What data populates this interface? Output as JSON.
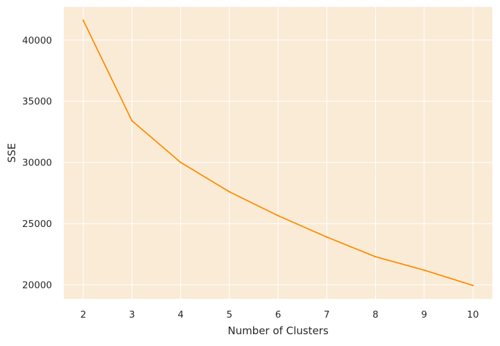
{
  "chart_data": {
    "type": "line",
    "title": "",
    "xlabel": "Number of Clusters",
    "ylabel": "SSE",
    "x": [
      2,
      3,
      4,
      5,
      6,
      7,
      8,
      9,
      10
    ],
    "series": [
      {
        "values": [
          41600,
          33400,
          30000,
          27600,
          25650,
          23900,
          22300,
          21200,
          19950
        ],
        "color": "#ff8c00"
      }
    ],
    "xticks": [
      2,
      3,
      4,
      5,
      6,
      7,
      8,
      9,
      10
    ],
    "yticks": [
      20000,
      25000,
      30000,
      35000,
      40000
    ],
    "xlim": [
      1.6,
      10.4
    ],
    "ylim": [
      18850,
      42700
    ],
    "grid": true,
    "background_color": "#faebd7",
    "grid_color": "#ffffff"
  }
}
